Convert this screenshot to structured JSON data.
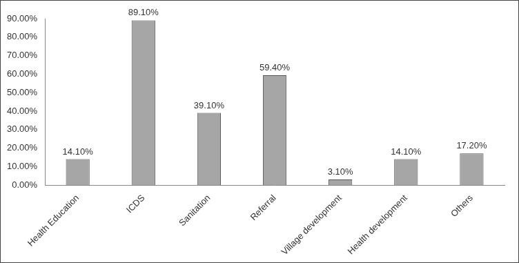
{
  "chart_data": {
    "type": "bar",
    "categories": [
      "Health Education",
      "ICDS",
      "Sanitation",
      "Referral",
      "Village development",
      "Health development",
      "Others"
    ],
    "values": [
      14.1,
      89.1,
      39.1,
      59.4,
      3.1,
      14.1,
      17.2
    ],
    "value_labels": [
      "14.10%",
      "89.10%",
      "39.10%",
      "59.40%",
      "3.10%",
      "14.10%",
      "17.20%"
    ],
    "color": "#a6a6a6",
    "ylim": [
      0,
      90
    ],
    "yticks": [
      {
        "value": 0,
        "label": "0.00%"
      },
      {
        "value": 10,
        "label": "10.00%"
      },
      {
        "value": 20,
        "label": "20.00%"
      },
      {
        "value": 30,
        "label": "30.00%"
      },
      {
        "value": 40,
        "label": "40.00%"
      },
      {
        "value": 50,
        "label": "50.00%"
      },
      {
        "value": 60,
        "label": "60.00%"
      },
      {
        "value": 70,
        "label": "70.00%"
      },
      {
        "value": 80,
        "label": "80.00%"
      },
      {
        "value": 90,
        "label": "90.00%"
      }
    ],
    "grid": false,
    "data_labels": true
  }
}
